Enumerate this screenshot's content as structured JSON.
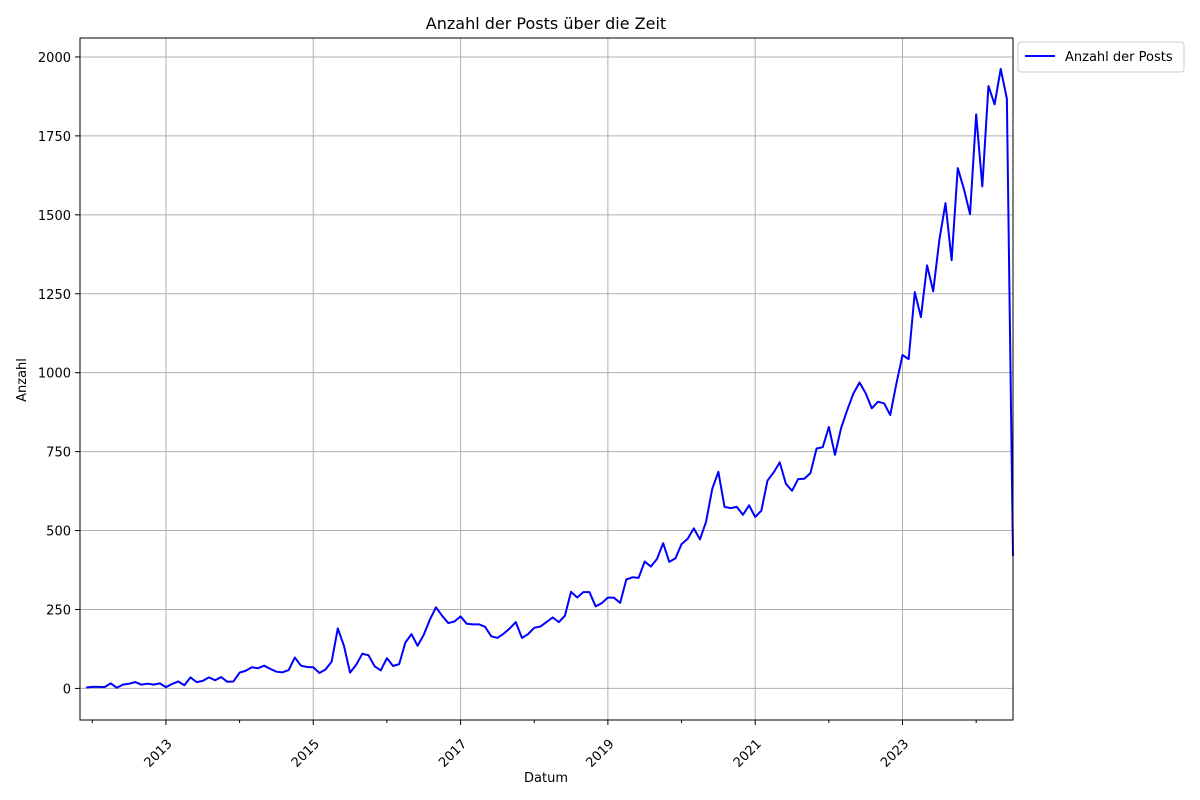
{
  "chart_data": {
    "type": "line",
    "title": "Anzahl der Posts über die Zeit",
    "xlabel": "Datum",
    "ylabel": "Anzahl",
    "ylim": [
      -100,
      2060
    ],
    "xlim": [
      "2011-11",
      "2024-07"
    ],
    "yticks": [
      0,
      250,
      500,
      750,
      1000,
      1250,
      1500,
      1750,
      2000
    ],
    "ytick_labels": [
      "0",
      "250",
      "500",
      "750",
      "1000",
      "1250",
      "1500",
      "1750",
      "2000"
    ],
    "xticks": [
      "2013-01",
      "2015-01",
      "2017-01",
      "2019-01",
      "2021-01",
      "2023-01"
    ],
    "xtick_labels": [
      "2013",
      "2015",
      "2017",
      "2019",
      "2021",
      "2023"
    ],
    "grid": true,
    "legend_position": "outside-top-right",
    "series": [
      {
        "name": "Anzahl der Posts",
        "color": "#0000ff",
        "x": [
          "2011-12",
          "2012-01",
          "2012-02",
          "2012-03",
          "2012-04",
          "2012-05",
          "2012-06",
          "2012-07",
          "2012-08",
          "2012-09",
          "2012-10",
          "2012-11",
          "2012-12",
          "2013-01",
          "2013-02",
          "2013-03",
          "2013-04",
          "2013-05",
          "2013-06",
          "2013-07",
          "2013-08",
          "2013-09",
          "2013-10",
          "2013-11",
          "2013-12",
          "2014-01",
          "2014-02",
          "2014-03",
          "2014-04",
          "2014-05",
          "2014-06",
          "2014-07",
          "2014-08",
          "2014-09",
          "2014-10",
          "2014-11",
          "2014-12",
          "2015-01",
          "2015-02",
          "2015-03",
          "2015-04",
          "2015-05",
          "2015-06",
          "2015-07",
          "2015-08",
          "2015-09",
          "2015-10",
          "2015-11",
          "2015-12",
          "2016-01",
          "2016-02",
          "2016-03",
          "2016-04",
          "2016-05",
          "2016-06",
          "2016-07",
          "2016-08",
          "2016-09",
          "2016-10",
          "2016-11",
          "2016-12",
          "2017-01",
          "2017-02",
          "2017-03",
          "2017-04",
          "2017-05",
          "2017-06",
          "2017-07",
          "2017-08",
          "2017-09",
          "2017-10",
          "2017-11",
          "2017-12",
          "2018-01",
          "2018-02",
          "2018-03",
          "2018-04",
          "2018-05",
          "2018-06",
          "2018-07",
          "2018-08",
          "2018-09",
          "2018-10",
          "2018-11",
          "2018-12",
          "2019-01",
          "2019-02",
          "2019-03",
          "2019-04",
          "2019-05",
          "2019-06",
          "2019-07",
          "2019-08",
          "2019-09",
          "2019-10",
          "2019-11",
          "2019-12",
          "2020-01",
          "2020-02",
          "2020-03",
          "2020-04",
          "2020-05",
          "2020-06",
          "2020-07",
          "2020-08",
          "2020-09",
          "2020-10",
          "2020-11",
          "2020-12",
          "2021-01",
          "2021-02",
          "2021-03",
          "2021-04",
          "2021-05",
          "2021-06",
          "2021-07",
          "2021-08",
          "2021-09",
          "2021-10",
          "2021-11",
          "2021-12",
          "2022-01",
          "2022-02",
          "2022-03",
          "2022-04",
          "2022-05",
          "2022-06",
          "2022-07",
          "2022-08",
          "2022-09",
          "2022-10",
          "2022-11",
          "2022-12",
          "2023-01",
          "2023-02",
          "2023-03",
          "2023-04",
          "2023-05",
          "2023-06",
          "2023-07",
          "2023-08",
          "2023-09",
          "2023-10",
          "2023-11",
          "2023-12",
          "2024-01",
          "2024-02",
          "2024-03",
          "2024-04",
          "2024-05",
          "2024-06",
          "2024-07"
        ],
        "values": [
          3,
          5,
          5,
          4,
          16,
          2,
          12,
          15,
          20,
          12,
          15,
          12,
          16,
          4,
          14,
          22,
          10,
          35,
          20,
          24,
          35,
          26,
          36,
          21,
          22,
          50,
          56,
          67,
          64,
          72,
          62,
          53,
          51,
          58,
          98,
          72,
          68,
          67,
          49,
          60,
          85,
          190,
          135,
          50,
          75,
          110,
          105,
          70,
          57,
          96,
          71,
          77,
          145,
          172,
          135,
          170,
          218,
          257,
          230,
          207,
          212,
          228,
          205,
          203,
          203,
          195,
          165,
          160,
          173,
          190,
          210,
          160,
          172,
          192,
          196,
          210,
          225,
          210,
          230,
          306,
          288,
          305,
          305,
          260,
          270,
          288,
          287,
          271,
          345,
          352,
          350,
          402,
          386,
          410,
          460,
          401,
          412,
          457,
          474,
          507,
          472,
          528,
          632,
          686,
          575,
          571,
          575,
          550,
          580,
          543,
          563,
          658,
          684,
          716,
          648,
          626,
          663,
          664,
          682,
          760,
          764,
          828,
          740,
          825,
          882,
          934,
          969,
          935,
          887,
          908,
          903,
          866,
          965,
          1056,
          1043,
          1255,
          1176,
          1340,
          1258,
          1420,
          1537,
          1356,
          1648,
          1582,
          1502,
          1818,
          1590,
          1908,
          1850,
          1962,
          1868,
          420
        ]
      }
    ]
  }
}
